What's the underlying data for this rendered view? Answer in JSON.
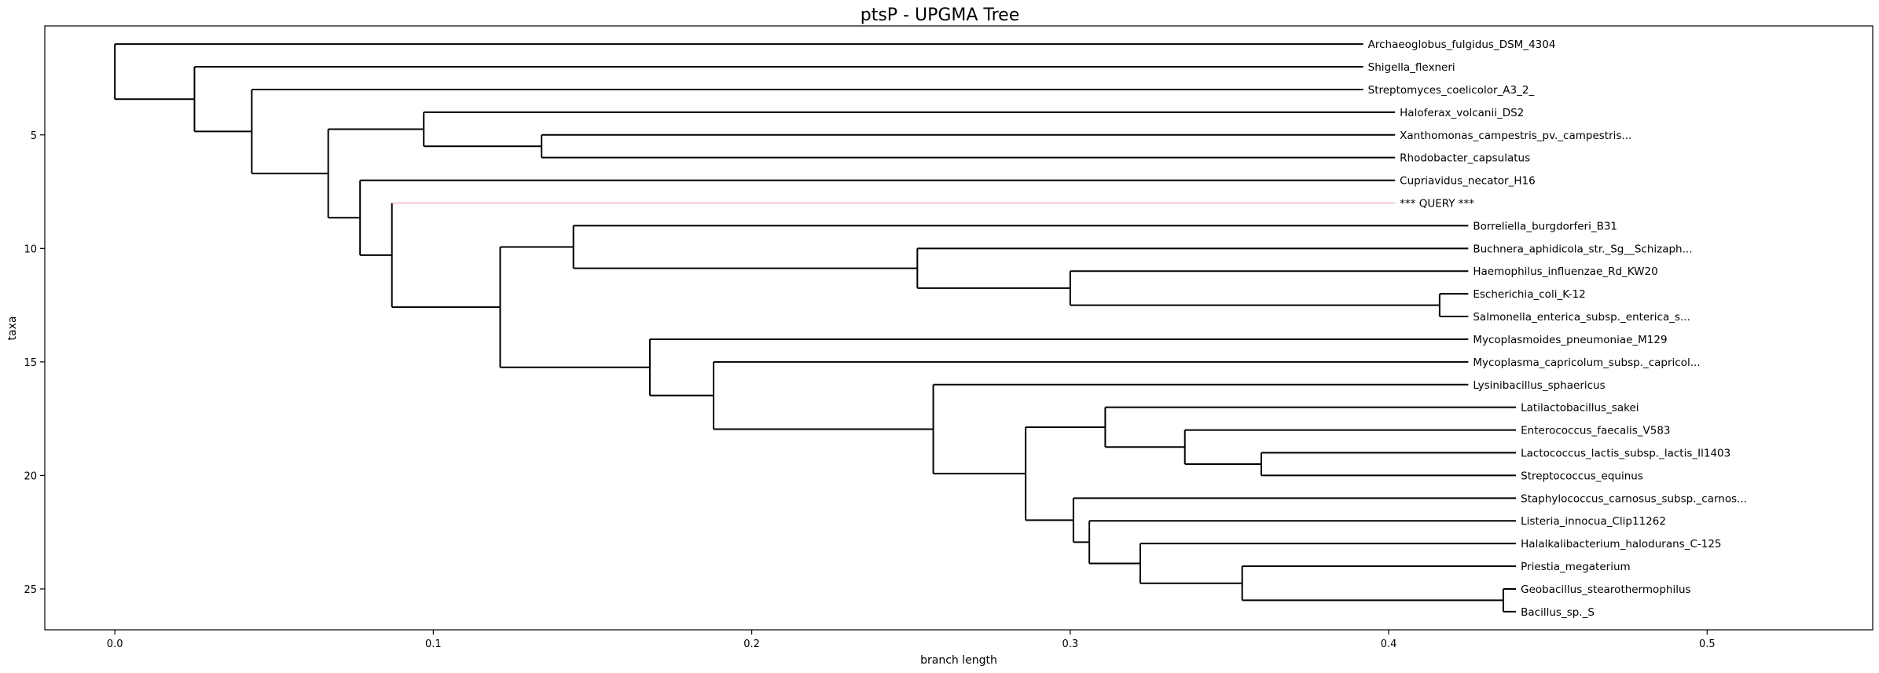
{
  "chart_data": {
    "type": "dendrogram",
    "title": "ptsP - UPGMA Tree",
    "xlabel": "branch length",
    "ylabel": "taxa",
    "xlim": [
      -0.022,
      0.552
    ],
    "ylim": [
      26.8,
      0.2
    ],
    "x_ticks": [
      "0.0",
      "0.1",
      "0.2",
      "0.3",
      "0.4",
      "0.5"
    ],
    "y_ticks": [
      "5",
      "10",
      "15",
      "20",
      "25"
    ],
    "grid": false,
    "colors": {
      "line": "#000000",
      "query": "#f4a6b4"
    },
    "leaves": [
      {
        "name": "Archaeoglobus_fulgidus_DSM_4304",
        "x": 0.392
      },
      {
        "name": "Shigella_flexneri",
        "x": 0.392
      },
      {
        "name": "Streptomyces_coelicolor_A3_2_",
        "x": 0.392
      },
      {
        "name": "Haloferax_volcanii_DS2",
        "x": 0.402
      },
      {
        "name": "Xanthomonas_campestris_pv._campestris...",
        "x": 0.402
      },
      {
        "name": "Rhodobacter_capsulatus",
        "x": 0.402
      },
      {
        "name": "Cupriavidus_necator_H16",
        "x": 0.402
      },
      {
        "name": "*** QUERY ***",
        "x": 0.402,
        "query": true
      },
      {
        "name": "Borreliella_burgdorferi_B31",
        "x": 0.425
      },
      {
        "name": "Buchnera_aphidicola_str._Sg__Schizaph...",
        "x": 0.425
      },
      {
        "name": "Haemophilus_influenzae_Rd_KW20",
        "x": 0.425
      },
      {
        "name": "Escherichia_coli_K-12",
        "x": 0.425
      },
      {
        "name": "Salmonella_enterica_subsp._enterica_s...",
        "x": 0.425
      },
      {
        "name": "Mycoplasmoides_pneumoniae_M129",
        "x": 0.425
      },
      {
        "name": "Mycoplasma_capricolum_subsp._capricol...",
        "x": 0.425
      },
      {
        "name": "Lysinibacillus_sphaericus",
        "x": 0.425
      },
      {
        "name": "Latilactobacillus_sakei",
        "x": 0.44
      },
      {
        "name": "Enterococcus_faecalis_V583",
        "x": 0.44
      },
      {
        "name": "Lactococcus_lactis_subsp._lactis_Il1403",
        "x": 0.44
      },
      {
        "name": "Streptococcus_equinus",
        "x": 0.44
      },
      {
        "name": "Staphylococcus_carnosus_subsp._carnos...",
        "x": 0.44
      },
      {
        "name": "Listeria_innocua_Clip11262",
        "x": 0.44
      },
      {
        "name": "Halalkalibacterium_halodurans_C-125",
        "x": 0.44
      },
      {
        "name": "Priestia_megaterium",
        "x": 0.44
      },
      {
        "name": "Geobacillus_stearothermophilus",
        "x": 0.44
      },
      {
        "name": "Bacillus_sp._S",
        "x": 0.44
      }
    ],
    "internal_nodes": [
      {
        "x": 0.436,
        "children": [
          "L25",
          "L26"
        ]
      },
      {
        "x": 0.354,
        "children": [
          "L24",
          "N1"
        ]
      },
      {
        "x": 0.322,
        "children": [
          "L23",
          "N2"
        ]
      },
      {
        "x": 0.306,
        "children": [
          "L22",
          "N3"
        ]
      },
      {
        "x": 0.301,
        "children": [
          "L21",
          "N4"
        ]
      },
      {
        "x": 0.36,
        "children": [
          "L19",
          "L20"
        ]
      },
      {
        "x": 0.336,
        "children": [
          "L18",
          "N6"
        ]
      },
      {
        "x": 0.311,
        "children": [
          "L17",
          "N7"
        ]
      },
      {
        "x": 0.286,
        "children": [
          "N8",
          "N5"
        ]
      },
      {
        "x": 0.257,
        "children": [
          "L16",
          "N9"
        ]
      },
      {
        "x": 0.188,
        "children": [
          "L15",
          "N10"
        ]
      },
      {
        "x": 0.168,
        "children": [
          "L14",
          "N11"
        ]
      },
      {
        "x": 0.416,
        "children": [
          "L12",
          "L13"
        ]
      },
      {
        "x": 0.3,
        "children": [
          "L11",
          "N13"
        ]
      },
      {
        "x": 0.252,
        "children": [
          "L10",
          "N14"
        ]
      },
      {
        "x": 0.144,
        "children": [
          "L9",
          "N15"
        ]
      },
      {
        "x": 0.121,
        "children": [
          "N16",
          "N12"
        ]
      },
      {
        "x": 0.087,
        "children": [
          "L8",
          "N17"
        ]
      },
      {
        "x": 0.077,
        "children": [
          "L7",
          "N18"
        ]
      },
      {
        "x": 0.134,
        "children": [
          "L5",
          "L6"
        ]
      },
      {
        "x": 0.097,
        "children": [
          "L4",
          "N20"
        ]
      },
      {
        "x": 0.067,
        "children": [
          "N21",
          "N19"
        ]
      },
      {
        "x": 0.043,
        "children": [
          "L3",
          "N22"
        ]
      },
      {
        "x": 0.025,
        "children": [
          "L2",
          "N23"
        ]
      },
      {
        "x": 0.0,
        "children": [
          "L1",
          "N24"
        ]
      }
    ]
  }
}
